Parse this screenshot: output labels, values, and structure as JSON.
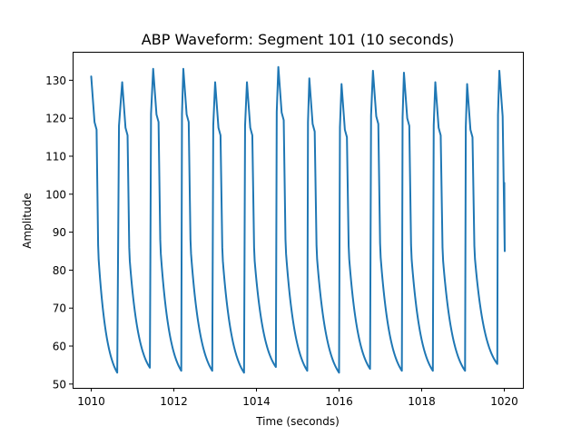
{
  "chart_data": {
    "type": "line",
    "title": "ABP Waveform: Segment 101 (10 seconds)",
    "xlabel": "Time (seconds)",
    "ylabel": "Amplitude",
    "xlim": [
      1009.55,
      1020.45
    ],
    "ylim": [
      49.0,
      137.5
    ],
    "xticks": [
      1010,
      1012,
      1014,
      1016,
      1018,
      1020
    ],
    "yticks": [
      50,
      60,
      70,
      80,
      90,
      100,
      110,
      120,
      130
    ],
    "grid": false,
    "legend": "none",
    "series_color": "#1f77b4",
    "beats": [
      {
        "foot_t": 1010.0,
        "foot_v": null,
        "peak_t": null,
        "peak_v": 131.0,
        "notch_v": 84.5
      },
      {
        "foot_t": 1010.63,
        "foot_v": 53.0,
        "peak_t": 1010.75,
        "peak_v": 129.5,
        "notch_v": 84.0
      },
      {
        "foot_t": 1011.42,
        "foot_v": 54.3,
        "peak_t": 1011.5,
        "peak_v": 133.0,
        "notch_v": 86.0
      },
      {
        "foot_t": 1012.18,
        "foot_v": 53.5,
        "peak_t": 1012.23,
        "peak_v": 133.0,
        "notch_v": 86.0
      },
      {
        "foot_t": 1012.93,
        "foot_v": 53.5,
        "peak_t": 1013.0,
        "peak_v": 129.5,
        "notch_v": 84.0
      },
      {
        "foot_t": 1013.7,
        "foot_v": 53.0,
        "peak_t": 1013.77,
        "peak_v": 129.5,
        "notch_v": 84.0
      },
      {
        "foot_t": 1014.47,
        "foot_v": 54.5,
        "peak_t": 1014.53,
        "peak_v": 133.5,
        "notch_v": 86.0
      },
      {
        "foot_t": 1015.23,
        "foot_v": 53.5,
        "peak_t": 1015.28,
        "peak_v": 130.5,
        "notch_v": 84.5
      },
      {
        "foot_t": 1016.0,
        "foot_v": 53.0,
        "peak_t": 1016.06,
        "peak_v": 129.0,
        "notch_v": 84.5
      },
      {
        "foot_t": 1016.75,
        "foot_v": 54.0,
        "peak_t": 1016.82,
        "peak_v": 132.5,
        "notch_v": 85.0
      },
      {
        "foot_t": 1017.52,
        "foot_v": 53.5,
        "peak_t": 1017.57,
        "peak_v": 132.0,
        "notch_v": 84.5
      },
      {
        "foot_t": 1018.27,
        "foot_v": 53.5,
        "peak_t": 1018.33,
        "peak_v": 129.5,
        "notch_v": 84.0
      },
      {
        "foot_t": 1019.05,
        "foot_v": 53.5,
        "peak_t": 1019.1,
        "peak_v": 129.0,
        "notch_v": 84.5
      },
      {
        "foot_t": 1019.83,
        "foot_v": 55.3,
        "peak_t": 1019.88,
        "peak_v": 132.5,
        "notch_v": 85.0
      },
      {
        "foot_t": 1020.0,
        "foot_v": null,
        "peak_t": null,
        "peak_v": null,
        "notch_v": null,
        "end_v": 103.0
      }
    ]
  }
}
